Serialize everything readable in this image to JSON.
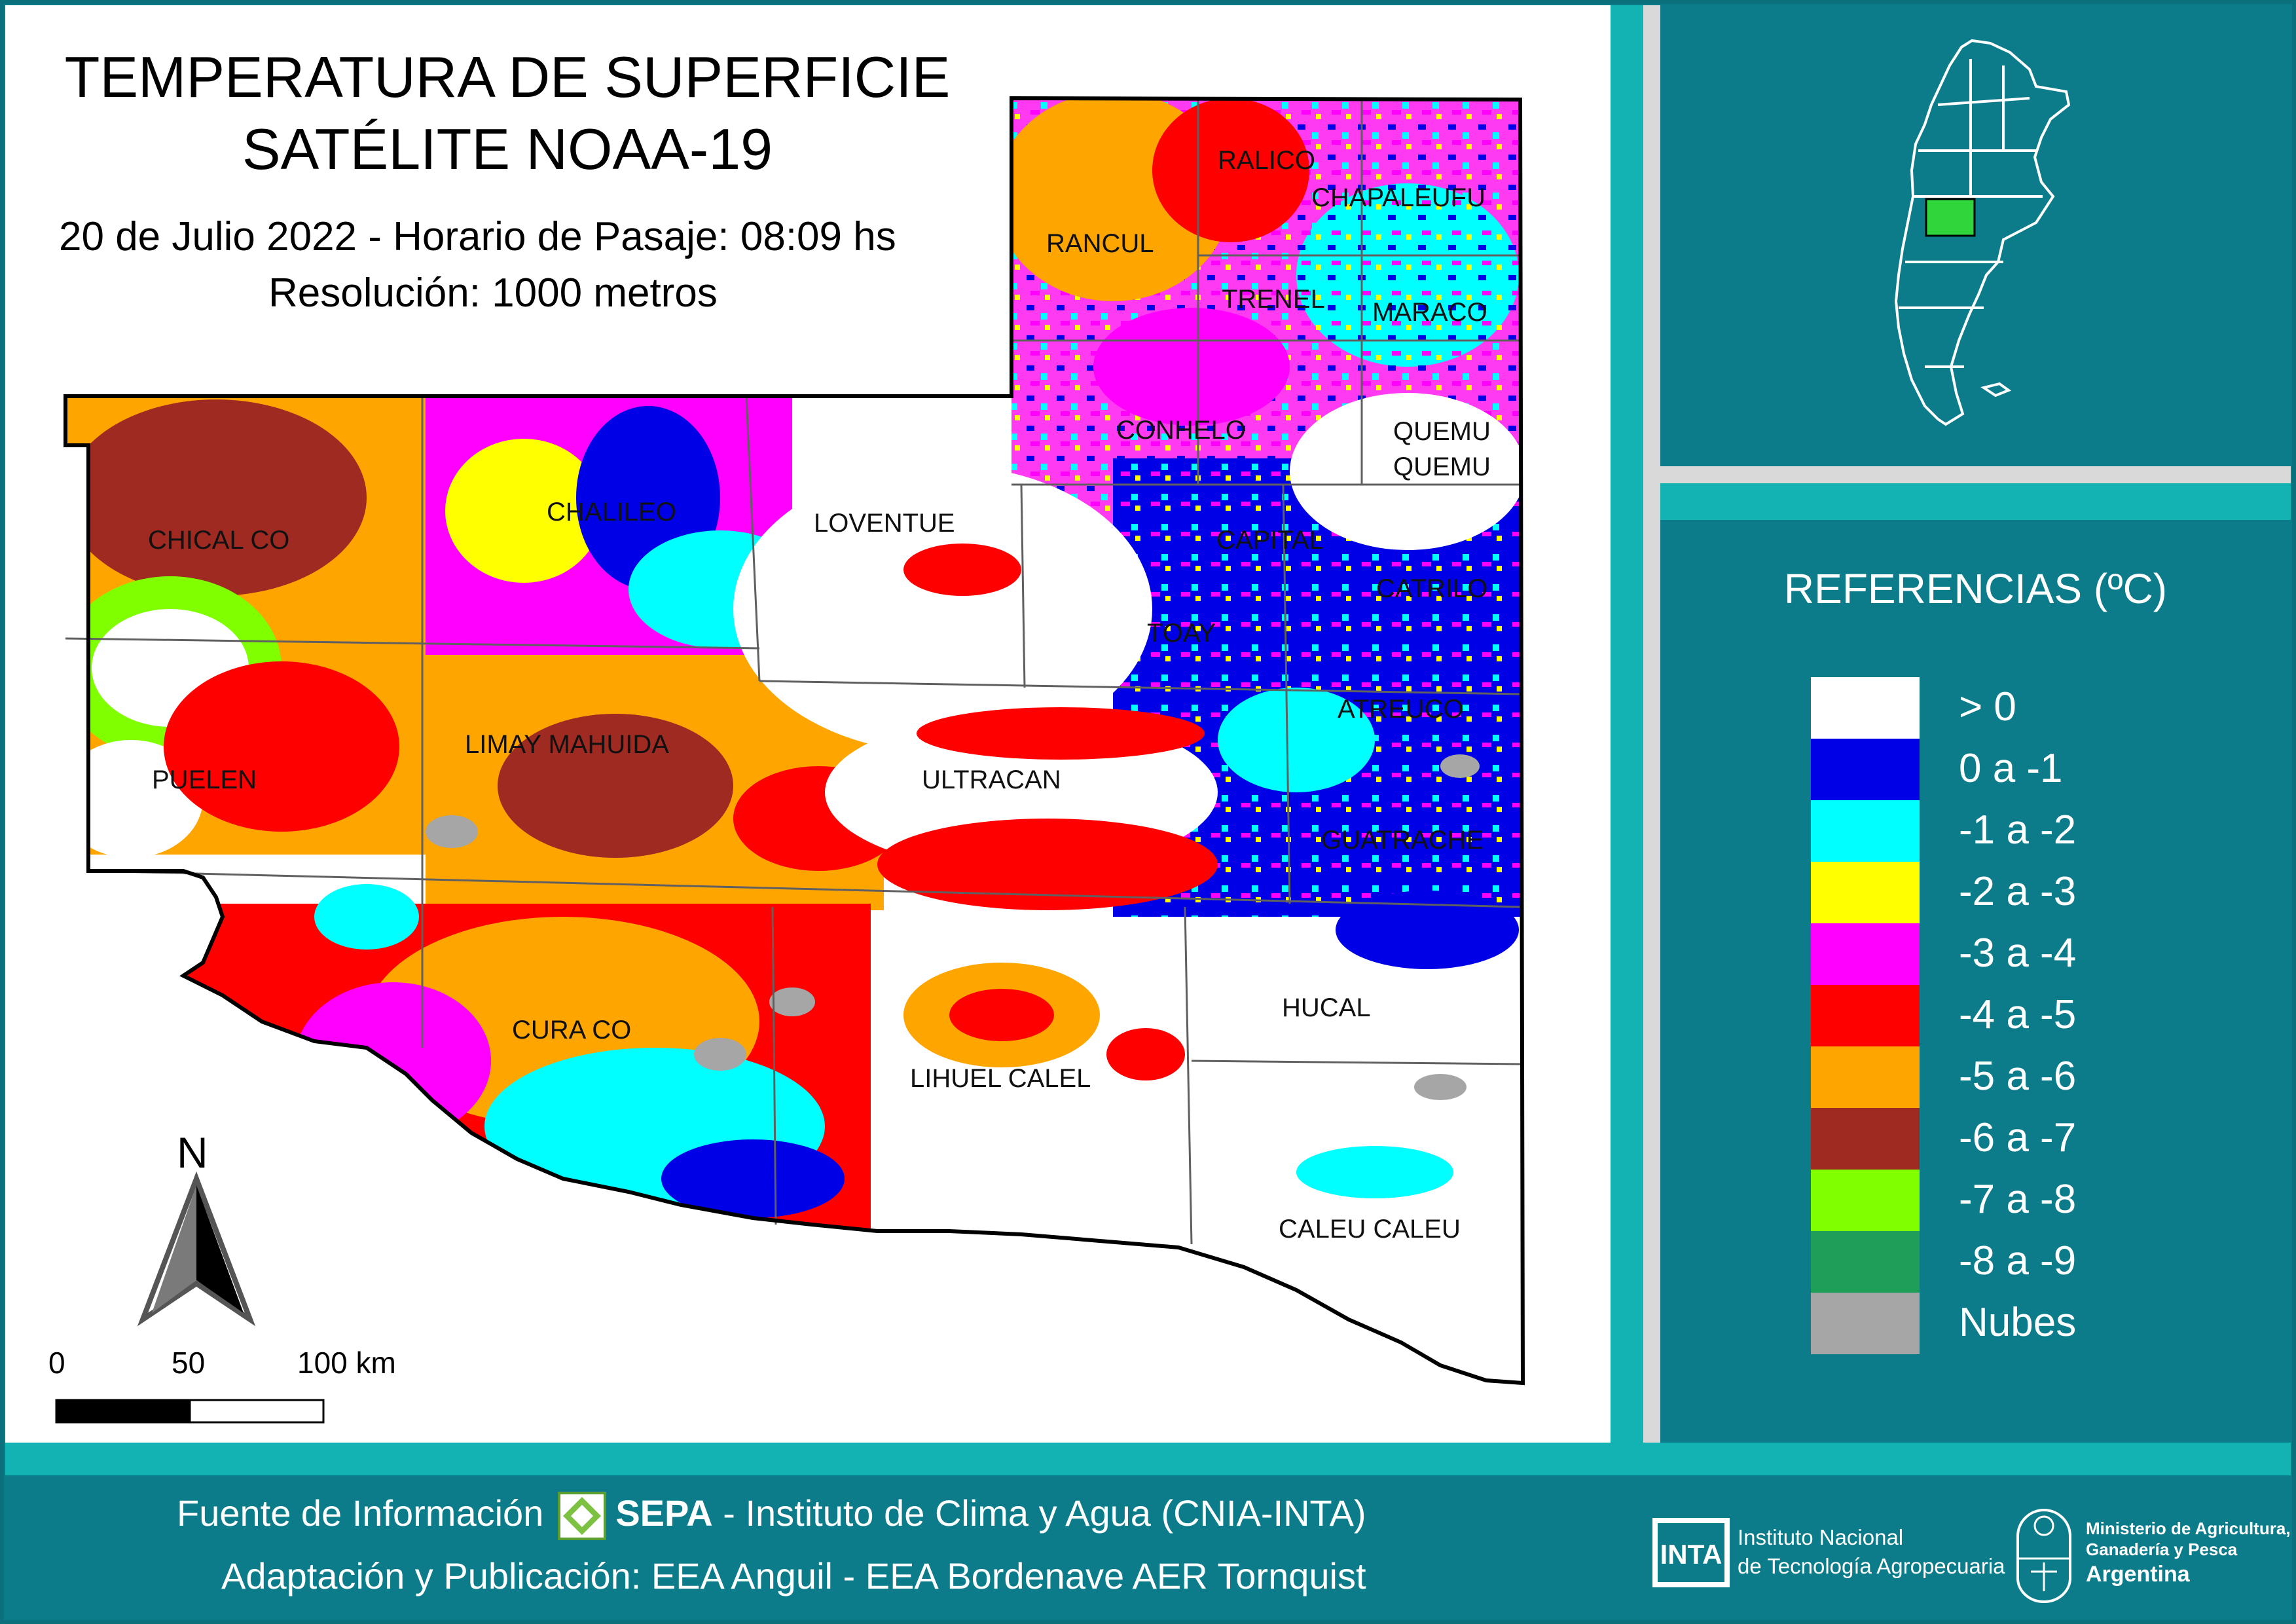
{
  "title": {
    "line1": "TEMPERATURA DE SUPERFICIE",
    "line2": "SATÉLITE NOAA-19",
    "date_line": "20 de Julio 2022 - Horario de Pasaje: 08:09 hs",
    "resolution_line": "Resolución: 1000 metros"
  },
  "map": {
    "departments": [
      "RANCUL",
      "RALICO",
      "CHAPALEUFU",
      "TRENEL",
      "MARACO",
      "CONHELO",
      "QUEMU",
      "QUEMU",
      "CHALILEO",
      "LOVENTUE",
      "CAPITAL",
      "CHICAL CO",
      "CATRILO",
      "TOAY",
      "ATREUCO",
      "LIMAY MAHUIDA",
      "PUELEN",
      "ULTRACAN",
      "GUATRACHE",
      "HUCAL",
      "CURA CO",
      "LIHUEL CALEL",
      "CALEU CALEU"
    ],
    "north_label": "N",
    "scale": {
      "zero": "0",
      "mid": "50",
      "end": "100 km"
    }
  },
  "legend": {
    "title": "REFERENCIAS (ºC)",
    "items": [
      {
        "label": "> 0",
        "color": "#ffffff"
      },
      {
        "label": "0 a -1",
        "color": "#0000e6"
      },
      {
        "label": "-1 a -2",
        "color": "#00ffff"
      },
      {
        "label": "-2 a -3",
        "color": "#ffff00"
      },
      {
        "label": "-3 a -4",
        "color": "#ff00ff"
      },
      {
        "label": "-4 a -5",
        "color": "#ff0000"
      },
      {
        "label": "-5 a -6",
        "color": "#ffa500"
      },
      {
        "label": "-6 a -7",
        "color": "#9e2a22"
      },
      {
        "label": "-7 a -8",
        "color": "#7fff00"
      },
      {
        "label": "-8 a -9",
        "color": "#1f9e5a"
      },
      {
        "label": "Nubes",
        "color": "#a6a6a6"
      }
    ]
  },
  "footer": {
    "source_prefix": "Fuente de Información",
    "source_org": "SEPA",
    "source_rest": " - Instituto de Clima y Agua (CNIA-INTA)",
    "publication": "Adaptación y Publicación: EEA Anguil - EEA Bordenave AER Tornquist",
    "inta_logo_text": "INTA",
    "inta_line1": "Instituto Nacional",
    "inta_line2": "de Tecnología Agropecuaria",
    "ministry_line1": "Ministerio de Agricultura,",
    "ministry_line2": "Ganadería y Pesca",
    "ministry_line3": "Argentina"
  }
}
